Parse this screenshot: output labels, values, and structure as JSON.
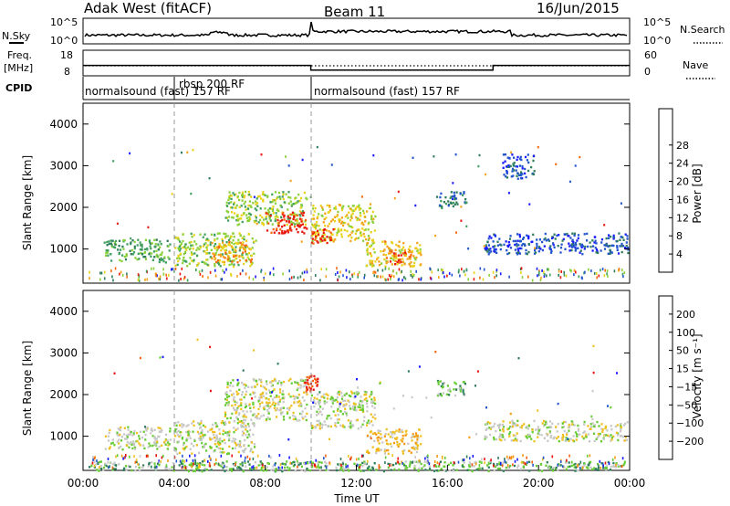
{
  "header": {
    "station": "Adak West (fitACF)",
    "beam": "Beam 11",
    "date": "16/Jun/2015"
  },
  "strips": {
    "nsky_label": "N.Sky",
    "nsky_ticks": [
      "10^5",
      "10^0"
    ],
    "nsearch_label": "N.Search",
    "nsearch_ticks": [
      "10^5",
      "10^0"
    ],
    "freq_label_1": "Freq.",
    "freq_label_2": "[MHz]",
    "freq_ticks": [
      "18",
      "8"
    ],
    "nave_label": "Nave",
    "nave_ticks": [
      "60",
      "0"
    ],
    "cpid_label": "CPID",
    "cpid_segments": [
      {
        "label": "normalsound (fast) 157 RF",
        "start_hour": 0.0,
        "end_hour": 4.0
      },
      {
        "label": "rbsp 200 RF",
        "start_hour": 4.0,
        "end_hour": 10.0
      },
      {
        "label": "normalsound (fast) 157 RF",
        "start_hour": 10.0,
        "end_hour": 24.0
      }
    ],
    "freq_mhz": [
      {
        "start_hour": 0.0,
        "end_hour": 10.0,
        "value": 12
      },
      {
        "start_hour": 10.0,
        "end_hour": 18.0,
        "value": 10
      },
      {
        "start_hour": 18.0,
        "end_hour": 24.0,
        "value": 12
      }
    ]
  },
  "chart_data": [
    {
      "type": "heatmap",
      "name": "power",
      "ylabel": "Slant Range [km]",
      "xlabel": "",
      "x_ticks": [
        "00:00",
        "04:00",
        "08:00",
        "12:00",
        "16:00",
        "20:00",
        "00:00"
      ],
      "y_ticks": [
        "1000",
        "2000",
        "3000",
        "4000"
      ],
      "xlim_hours": [
        0,
        24
      ],
      "ylim_km": [
        180,
        4500
      ],
      "colorbar": {
        "label": "Power [dB]",
        "ticks": [
          "4",
          "8",
          "12",
          "16",
          "20",
          "24",
          "28"
        ],
        "colors": [
          "#1a1aff",
          "#2255cc",
          "#2e7d5b",
          "#3fa060",
          "#8cd13a",
          "#e8d21a",
          "#f5a21a",
          "#f56a10",
          "#e81a10"
        ]
      },
      "patches": [
        {
          "t0": 0.9,
          "t1": 3.8,
          "r0": 700,
          "r1": 1250,
          "level": 3
        },
        {
          "t0": 4.0,
          "t1": 7.5,
          "r0": 600,
          "r1": 1400,
          "level": 4
        },
        {
          "t0": 5.6,
          "t1": 7.4,
          "r0": 700,
          "r1": 1200,
          "level": 6
        },
        {
          "t0": 6.2,
          "t1": 9.8,
          "r0": 1600,
          "r1": 2400,
          "level": 4
        },
        {
          "t0": 8.0,
          "t1": 9.8,
          "r0": 1400,
          "r1": 1900,
          "level": 8
        },
        {
          "t0": 10.0,
          "t1": 12.8,
          "r0": 1200,
          "r1": 2100,
          "level": 5
        },
        {
          "t0": 10.0,
          "t1": 11.0,
          "r0": 1150,
          "r1": 1500,
          "level": 8
        },
        {
          "t0": 12.4,
          "t1": 14.8,
          "r0": 600,
          "r1": 1200,
          "level": 5
        },
        {
          "t0": 13.2,
          "t1": 14.4,
          "r0": 650,
          "r1": 1000,
          "level": 7
        },
        {
          "t0": 15.5,
          "t1": 16.8,
          "r0": 2000,
          "r1": 2400,
          "level": 2
        },
        {
          "t0": 17.6,
          "t1": 23.9,
          "r0": 900,
          "r1": 1400,
          "level": 1
        },
        {
          "t0": 18.4,
          "t1": 19.8,
          "r0": 2700,
          "r1": 3300,
          "level": 1
        }
      ]
    },
    {
      "type": "heatmap",
      "name": "velocity",
      "ylabel": "Slant Range [km]",
      "xlabel": "Time UT",
      "x_ticks": [
        "00:00",
        "04:00",
        "08:00",
        "12:00",
        "16:00",
        "20:00",
        "00:00"
      ],
      "y_ticks": [
        "1000",
        "2000",
        "3000",
        "4000"
      ],
      "xlim_hours": [
        0,
        24
      ],
      "ylim_km": [
        180,
        4500
      ],
      "colorbar": {
        "label": "Velocity [m s⁻¹]",
        "ticks": [
          "200",
          "100",
          "50",
          "15",
          "−15",
          "−50",
          "−100",
          "−200"
        ],
        "colors": [
          "#1a1aff",
          "#2255cc",
          "#2e7d5b",
          "#66cc33",
          "#c8c8c8",
          "#f0c020",
          "#f59a10",
          "#f56010",
          "#e81010"
        ]
      },
      "patches": [
        {
          "t0": 0.9,
          "t1": 3.8,
          "r0": 700,
          "r1": 1250,
          "level": 4
        },
        {
          "t0": 4.0,
          "t1": 7.5,
          "r0": 600,
          "r1": 1400,
          "level": 4
        },
        {
          "t0": 6.2,
          "t1": 9.8,
          "r0": 1400,
          "r1": 2400,
          "level": 4
        },
        {
          "t0": 10.0,
          "t1": 12.8,
          "r0": 1200,
          "r1": 2100,
          "level": 4
        },
        {
          "t0": 9.6,
          "t1": 10.3,
          "r0": 2100,
          "r1": 2500,
          "level": 8
        },
        {
          "t0": 12.4,
          "t1": 14.8,
          "r0": 600,
          "r1": 1200,
          "level": 5
        },
        {
          "t0": 15.5,
          "t1": 16.8,
          "r0": 2000,
          "r1": 2400,
          "level": 3
        },
        {
          "t0": 17.6,
          "t1": 23.9,
          "r0": 900,
          "r1": 1400,
          "level": 4
        },
        {
          "t0": 0.2,
          "t1": 23.8,
          "r0": 180,
          "r1": 420,
          "level": 3
        }
      ]
    }
  ]
}
